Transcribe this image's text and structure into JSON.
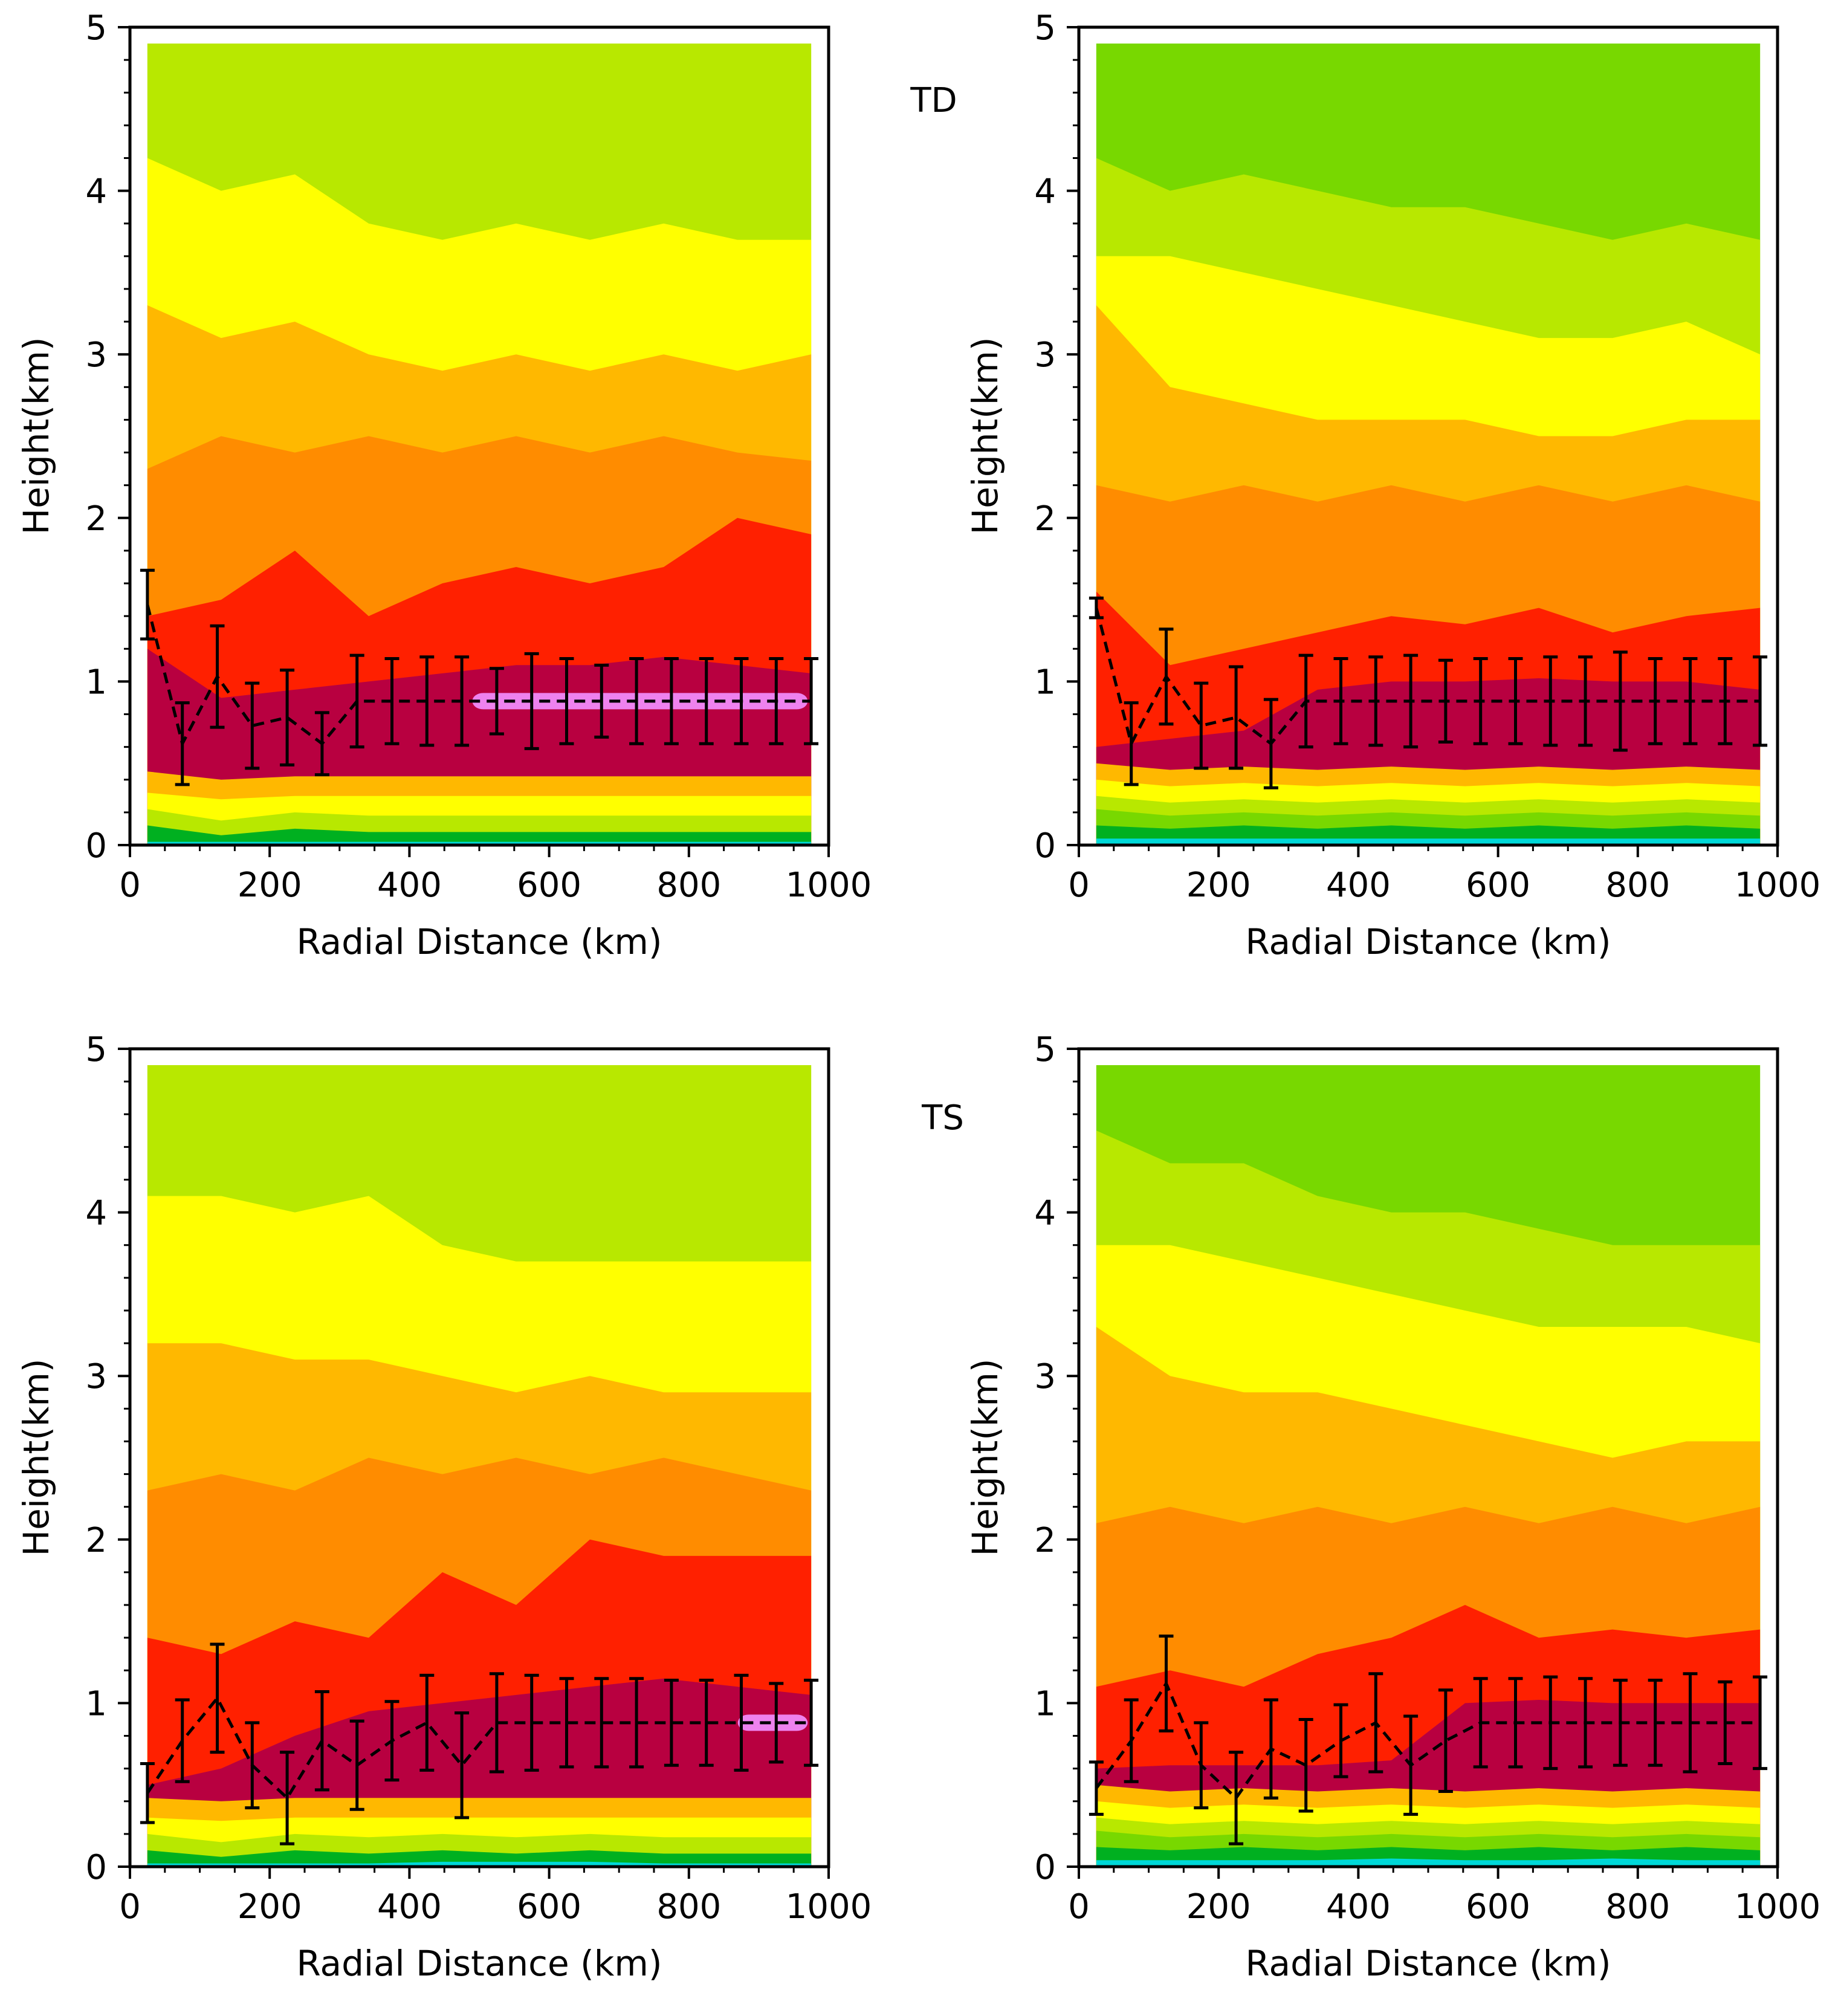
{
  "figure": {
    "category_labels": [
      "TD",
      "TS"
    ],
    "colors": {
      "frame": "#000000",
      "levels": [
        "#00d8d8",
        "#00b020",
        "#78d800",
        "#b8e800",
        "#ffff00",
        "#ffb800",
        "#ff8c00",
        "#ff2000",
        "#b80040",
        "#ee82ee"
      ]
    }
  },
  "chart_data": [
    {
      "id": "td-left",
      "type": "contour",
      "category": "TD",
      "xlabel": "Radial Distance (km)",
      "ylabel": "Height(km)",
      "xlim": [
        0,
        1000
      ],
      "ylim": [
        0,
        5
      ],
      "xticks": [
        "0",
        "200",
        "400",
        "600",
        "800",
        "1000"
      ],
      "yticks": [
        "0",
        "1",
        "2",
        "3",
        "4",
        "5"
      ],
      "field_x_range": [
        25,
        975
      ],
      "field_top_km": 4.9,
      "bands": [
        {
          "level": 0,
          "top": [
            0.02,
            0.02,
            0.02,
            0.02,
            0.02,
            0.02,
            0.02,
            0.02,
            0.02,
            0.02
          ]
        },
        {
          "level": 1,
          "top": [
            0.12,
            0.06,
            0.1,
            0.08,
            0.08,
            0.08,
            0.08,
            0.08,
            0.08,
            0.08
          ]
        },
        {
          "level": 3,
          "top": [
            0.22,
            0.15,
            0.2,
            0.18,
            0.18,
            0.18,
            0.18,
            0.18,
            0.18,
            0.18
          ]
        },
        {
          "level": 4,
          "top": [
            0.32,
            0.28,
            0.3,
            0.3,
            0.3,
            0.3,
            0.3,
            0.3,
            0.3,
            0.3
          ]
        },
        {
          "level": 5,
          "top": [
            0.45,
            0.4,
            0.42,
            0.42,
            0.42,
            0.42,
            0.42,
            0.42,
            0.42,
            0.42
          ]
        },
        {
          "level": 8,
          "top": [
            1.2,
            0.9,
            0.95,
            1.0,
            1.05,
            1.1,
            1.1,
            1.15,
            1.1,
            1.05
          ]
        },
        {
          "level": 7,
          "top": [
            1.4,
            1.5,
            1.8,
            1.4,
            1.6,
            1.7,
            1.6,
            1.7,
            2.0,
            1.9
          ]
        },
        {
          "level": 6,
          "top": [
            2.3,
            2.5,
            2.4,
            2.5,
            2.4,
            2.5,
            2.4,
            2.5,
            2.4,
            2.35
          ]
        },
        {
          "level": 5,
          "top": [
            3.3,
            3.1,
            3.2,
            3.0,
            2.9,
            3.0,
            2.9,
            3.0,
            2.9,
            3.0
          ]
        },
        {
          "level": 4,
          "top": [
            4.2,
            4.0,
            4.1,
            3.8,
            3.7,
            3.8,
            3.7,
            3.8,
            3.7,
            3.7
          ]
        },
        {
          "level": 3,
          "top": [
            4.9,
            4.9,
            4.9,
            4.9,
            4.9,
            4.9,
            4.9,
            4.9,
            4.9,
            4.9
          ]
        }
      ],
      "highlight_band": {
        "level": 9,
        "x_range": [
          490,
          970
        ],
        "center_km": 0.88,
        "half_height_km": 0.05
      },
      "x": [
        25,
        75,
        125,
        175,
        225,
        275,
        325,
        375,
        425,
        475,
        525,
        575,
        625,
        675,
        725,
        775,
        825,
        875,
        925,
        975
      ],
      "mean": [
        1.47,
        0.62,
        1.03,
        0.73,
        0.78,
        0.62,
        0.88,
        0.88,
        0.88,
        0.88,
        0.88,
        0.88,
        0.88,
        0.88,
        0.88,
        0.88,
        0.88,
        0.88,
        0.88,
        0.88
      ],
      "err": [
        0.21,
        0.25,
        0.31,
        0.26,
        0.29,
        0.19,
        0.28,
        0.26,
        0.27,
        0.27,
        0.2,
        0.29,
        0.26,
        0.22,
        0.26,
        0.26,
        0.26,
        0.26,
        0.26,
        0.26
      ]
    },
    {
      "id": "td-right",
      "type": "contour",
      "category": "TD",
      "xlabel": "Radial Distance (km)",
      "ylabel": "Height(km)",
      "xlim": [
        0,
        1000
      ],
      "ylim": [
        0,
        5
      ],
      "xticks": [
        "0",
        "200",
        "400",
        "600",
        "800",
        "1000"
      ],
      "yticks": [
        "0",
        "1",
        "2",
        "3",
        "4",
        "5"
      ],
      "field_x_range": [
        25,
        975
      ],
      "field_top_km": 4.9,
      "bands": [
        {
          "level": 0,
          "top": [
            0.04,
            0.04,
            0.04,
            0.04,
            0.04,
            0.04,
            0.04,
            0.04,
            0.04,
            0.04
          ]
        },
        {
          "level": 1,
          "top": [
            0.12,
            0.1,
            0.12,
            0.1,
            0.12,
            0.1,
            0.12,
            0.1,
            0.12,
            0.1
          ]
        },
        {
          "level": 2,
          "top": [
            0.22,
            0.18,
            0.2,
            0.18,
            0.2,
            0.18,
            0.2,
            0.18,
            0.2,
            0.18
          ]
        },
        {
          "level": 3,
          "top": [
            0.3,
            0.26,
            0.28,
            0.26,
            0.28,
            0.26,
            0.28,
            0.26,
            0.28,
            0.26
          ]
        },
        {
          "level": 4,
          "top": [
            0.4,
            0.36,
            0.38,
            0.36,
            0.38,
            0.36,
            0.38,
            0.36,
            0.38,
            0.36
          ]
        },
        {
          "level": 5,
          "top": [
            0.5,
            0.46,
            0.48,
            0.46,
            0.48,
            0.46,
            0.48,
            0.46,
            0.48,
            0.46
          ]
        },
        {
          "level": 8,
          "top": [
            0.6,
            0.65,
            0.7,
            0.95,
            1.0,
            1.0,
            1.02,
            1.0,
            1.0,
            0.95
          ]
        },
        {
          "level": 7,
          "top": [
            1.55,
            1.1,
            1.2,
            1.3,
            1.4,
            1.35,
            1.45,
            1.3,
            1.4,
            1.45
          ]
        },
        {
          "level": 6,
          "top": [
            2.2,
            2.1,
            2.2,
            2.1,
            2.2,
            2.1,
            2.2,
            2.1,
            2.2,
            2.1
          ]
        },
        {
          "level": 5,
          "top": [
            3.3,
            2.8,
            2.7,
            2.6,
            2.6,
            2.6,
            2.5,
            2.5,
            2.6,
            2.6
          ]
        },
        {
          "level": 4,
          "top": [
            3.6,
            3.6,
            3.5,
            3.4,
            3.3,
            3.2,
            3.1,
            3.1,
            3.2,
            3.0
          ]
        },
        {
          "level": 3,
          "top": [
            4.2,
            4.0,
            4.1,
            4.0,
            3.9,
            3.9,
            3.8,
            3.7,
            3.8,
            3.7
          ]
        },
        {
          "level": 2,
          "top": [
            4.9,
            4.9,
            4.9,
            4.9,
            4.9,
            4.9,
            4.9,
            4.9,
            4.9,
            4.9
          ]
        }
      ],
      "highlight_band": null,
      "x": [
        25,
        75,
        125,
        175,
        225,
        275,
        325,
        375,
        425,
        475,
        525,
        575,
        625,
        675,
        725,
        775,
        825,
        875,
        925,
        975
      ],
      "mean": [
        1.45,
        0.62,
        1.03,
        0.73,
        0.78,
        0.62,
        0.88,
        0.88,
        0.88,
        0.88,
        0.88,
        0.88,
        0.88,
        0.88,
        0.88,
        0.88,
        0.88,
        0.88,
        0.88,
        0.88
      ],
      "err": [
        0.06,
        0.25,
        0.29,
        0.26,
        0.31,
        0.27,
        0.28,
        0.26,
        0.27,
        0.28,
        0.25,
        0.26,
        0.26,
        0.27,
        0.27,
        0.3,
        0.26,
        0.26,
        0.26,
        0.27
      ]
    },
    {
      "id": "ts-left",
      "type": "contour",
      "category": "TS",
      "xlabel": "Radial Distance (km)",
      "ylabel": "Height(km)",
      "xlim": [
        0,
        1000
      ],
      "ylim": [
        0,
        5
      ],
      "xticks": [
        "0",
        "200",
        "400",
        "600",
        "800",
        "1000"
      ],
      "yticks": [
        "0",
        "1",
        "2",
        "3",
        "4",
        "5"
      ],
      "field_x_range": [
        25,
        975
      ],
      "field_top_km": 4.9,
      "bands": [
        {
          "level": 0,
          "top": [
            0.02,
            0.02,
            0.02,
            0.02,
            0.03,
            0.03,
            0.03,
            0.02,
            0.02,
            0.02
          ]
        },
        {
          "level": 1,
          "top": [
            0.1,
            0.06,
            0.1,
            0.08,
            0.1,
            0.08,
            0.1,
            0.08,
            0.08,
            0.08
          ]
        },
        {
          "level": 3,
          "top": [
            0.2,
            0.15,
            0.2,
            0.18,
            0.2,
            0.18,
            0.2,
            0.18,
            0.18,
            0.18
          ]
        },
        {
          "level": 4,
          "top": [
            0.3,
            0.28,
            0.3,
            0.3,
            0.3,
            0.3,
            0.3,
            0.3,
            0.3,
            0.3
          ]
        },
        {
          "level": 5,
          "top": [
            0.42,
            0.4,
            0.42,
            0.42,
            0.42,
            0.42,
            0.42,
            0.42,
            0.42,
            0.42
          ]
        },
        {
          "level": 8,
          "top": [
            0.5,
            0.6,
            0.8,
            0.95,
            1.0,
            1.05,
            1.1,
            1.15,
            1.1,
            1.05
          ]
        },
        {
          "level": 7,
          "top": [
            1.4,
            1.3,
            1.5,
            1.4,
            1.8,
            1.6,
            2.0,
            1.9,
            1.9,
            1.9
          ]
        },
        {
          "level": 6,
          "top": [
            2.3,
            2.4,
            2.3,
            2.5,
            2.4,
            2.5,
            2.4,
            2.5,
            2.4,
            2.3
          ]
        },
        {
          "level": 5,
          "top": [
            3.2,
            3.2,
            3.1,
            3.1,
            3.0,
            2.9,
            3.0,
            2.9,
            2.9,
            2.9
          ]
        },
        {
          "level": 4,
          "top": [
            4.1,
            4.1,
            4.0,
            4.1,
            3.8,
            3.7,
            3.7,
            3.7,
            3.7,
            3.7
          ]
        },
        {
          "level": 3,
          "top": [
            4.9,
            4.9,
            4.9,
            4.9,
            4.9,
            4.9,
            4.9,
            4.9,
            4.9,
            4.9
          ]
        }
      ],
      "highlight_band": {
        "level": 9,
        "x_range": [
          870,
          970
        ],
        "center_km": 0.88,
        "half_height_km": 0.05
      },
      "x": [
        25,
        75,
        125,
        175,
        225,
        275,
        325,
        375,
        425,
        475,
        525,
        575,
        625,
        675,
        725,
        775,
        825,
        875,
        925,
        975
      ],
      "mean": [
        0.45,
        0.77,
        1.03,
        0.62,
        0.42,
        0.77,
        0.62,
        0.77,
        0.88,
        0.62,
        0.88,
        0.88,
        0.88,
        0.88,
        0.88,
        0.88,
        0.88,
        0.88,
        0.88,
        0.88
      ],
      "err": [
        0.18,
        0.25,
        0.33,
        0.26,
        0.28,
        0.3,
        0.27,
        0.24,
        0.29,
        0.32,
        0.3,
        0.29,
        0.27,
        0.27,
        0.27,
        0.26,
        0.26,
        0.29,
        0.24,
        0.26
      ]
    },
    {
      "id": "ts-right",
      "type": "contour",
      "category": "TS",
      "xlabel": "Radial Distance (km)",
      "ylabel": "Height(km)",
      "xlim": [
        0,
        1000
      ],
      "ylim": [
        0,
        5
      ],
      "xticks": [
        "0",
        "200",
        "400",
        "600",
        "800",
        "1000"
      ],
      "yticks": [
        "0",
        "1",
        "2",
        "3",
        "4",
        "5"
      ],
      "field_x_range": [
        25,
        975
      ],
      "field_top_km": 4.9,
      "bands": [
        {
          "level": 0,
          "top": [
            0.04,
            0.04,
            0.04,
            0.04,
            0.05,
            0.04,
            0.04,
            0.05,
            0.04,
            0.04
          ]
        },
        {
          "level": 1,
          "top": [
            0.12,
            0.1,
            0.12,
            0.1,
            0.12,
            0.1,
            0.12,
            0.1,
            0.12,
            0.1
          ]
        },
        {
          "level": 2,
          "top": [
            0.22,
            0.18,
            0.2,
            0.18,
            0.2,
            0.18,
            0.2,
            0.18,
            0.2,
            0.18
          ]
        },
        {
          "level": 3,
          "top": [
            0.3,
            0.26,
            0.28,
            0.26,
            0.28,
            0.26,
            0.28,
            0.26,
            0.28,
            0.26
          ]
        },
        {
          "level": 4,
          "top": [
            0.4,
            0.36,
            0.38,
            0.36,
            0.38,
            0.36,
            0.38,
            0.36,
            0.38,
            0.36
          ]
        },
        {
          "level": 5,
          "top": [
            0.5,
            0.46,
            0.48,
            0.46,
            0.48,
            0.46,
            0.48,
            0.46,
            0.48,
            0.46
          ]
        },
        {
          "level": 8,
          "top": [
            0.6,
            0.62,
            0.62,
            0.62,
            0.65,
            1.0,
            1.02,
            1.0,
            1.0,
            1.0
          ]
        },
        {
          "level": 7,
          "top": [
            1.1,
            1.2,
            1.1,
            1.3,
            1.4,
            1.6,
            1.4,
            1.45,
            1.4,
            1.45
          ]
        },
        {
          "level": 6,
          "top": [
            2.1,
            2.2,
            2.1,
            2.2,
            2.1,
            2.2,
            2.1,
            2.2,
            2.1,
            2.2
          ]
        },
        {
          "level": 5,
          "top": [
            3.3,
            3.0,
            2.9,
            2.9,
            2.8,
            2.7,
            2.6,
            2.5,
            2.6,
            2.6
          ]
        },
        {
          "level": 4,
          "top": [
            3.8,
            3.8,
            3.7,
            3.6,
            3.5,
            3.4,
            3.3,
            3.3,
            3.3,
            3.2
          ]
        },
        {
          "level": 3,
          "top": [
            4.5,
            4.3,
            4.3,
            4.1,
            4.0,
            4.0,
            3.9,
            3.8,
            3.8,
            3.8
          ]
        },
        {
          "level": 2,
          "top": [
            4.9,
            4.9,
            4.9,
            4.9,
            4.9,
            4.9,
            4.9,
            4.9,
            4.9,
            4.9
          ]
        }
      ],
      "highlight_band": null,
      "x": [
        25,
        75,
        125,
        175,
        225,
        275,
        325,
        375,
        425,
        475,
        525,
        575,
        625,
        675,
        725,
        775,
        825,
        875,
        925,
        975
      ],
      "mean": [
        0.48,
        0.77,
        1.12,
        0.62,
        0.42,
        0.72,
        0.62,
        0.77,
        0.88,
        0.62,
        0.77,
        0.88,
        0.88,
        0.88,
        0.88,
        0.88,
        0.88,
        0.88,
        0.88,
        0.88
      ],
      "err": [
        0.16,
        0.25,
        0.29,
        0.26,
        0.28,
        0.3,
        0.28,
        0.22,
        0.3,
        0.3,
        0.31,
        0.27,
        0.27,
        0.28,
        0.27,
        0.26,
        0.26,
        0.3,
        0.25,
        0.28
      ]
    }
  ]
}
